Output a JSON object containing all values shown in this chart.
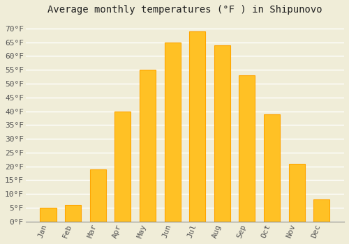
{
  "title": "Average monthly temperatures (°F ) in Shipunovo",
  "months": [
    "Jan",
    "Feb",
    "Mar",
    "Apr",
    "May",
    "Jun",
    "Jul",
    "Aug",
    "Sep",
    "Oct",
    "Nov",
    "Dec"
  ],
  "values": [
    5,
    6,
    19,
    40,
    55,
    65,
    69,
    64,
    53,
    39,
    21,
    8
  ],
  "bar_color": "#FFC125",
  "bar_edge_color": "#FFA500",
  "background_color": "#F0EDD8",
  "grid_color": "#FFFFFF",
  "ylim": [
    0,
    73
  ],
  "yticks": [
    0,
    5,
    10,
    15,
    20,
    25,
    30,
    35,
    40,
    45,
    50,
    55,
    60,
    65,
    70
  ],
  "ytick_labels": [
    "0°F",
    "5°F",
    "10°F",
    "15°F",
    "20°F",
    "25°F",
    "30°F",
    "35°F",
    "40°F",
    "45°F",
    "50°F",
    "55°F",
    "60°F",
    "65°F",
    "70°F"
  ],
  "title_fontsize": 10,
  "tick_fontsize": 8,
  "font_family": "monospace",
  "bar_width": 0.65
}
